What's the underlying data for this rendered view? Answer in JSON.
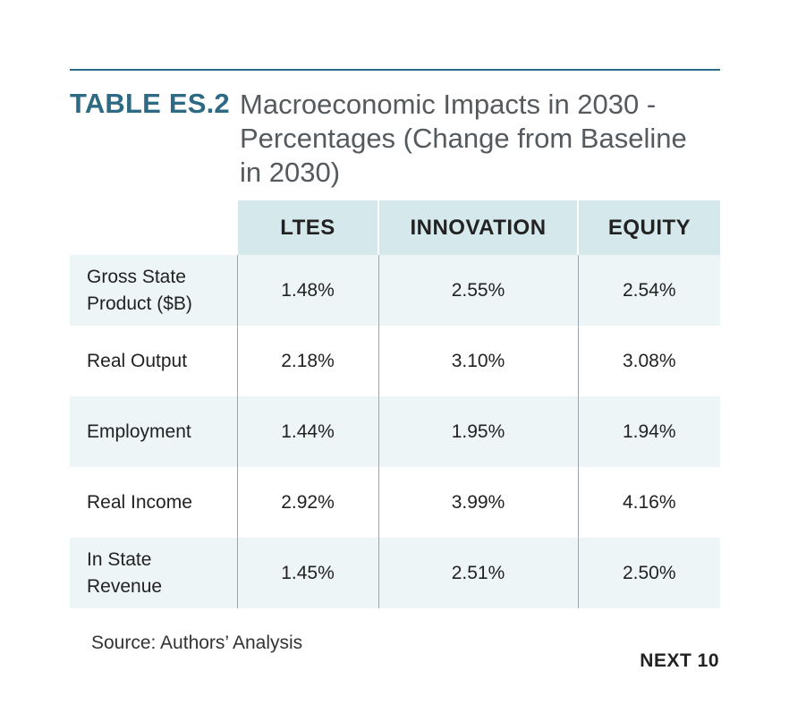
{
  "title": {
    "label": "TABLE ES.2",
    "text": "Macroeconomic Impacts in 2030 - Percentages (Change from Baseline in 2030)"
  },
  "table": {
    "headers": [
      "",
      "LTES",
      "INNOVATION",
      "EQUITY"
    ],
    "rows": [
      {
        "label": "Gross State Product ($B)",
        "values": [
          "1.48%",
          "2.55%",
          "2.54%"
        ]
      },
      {
        "label": "Real Output",
        "values": [
          "2.18%",
          "3.10%",
          "3.08%"
        ]
      },
      {
        "label": "Employment",
        "values": [
          "1.44%",
          "1.95%",
          "1.94%"
        ]
      },
      {
        "label": "Real Income",
        "values": [
          "2.92%",
          "3.99%",
          "4.16%"
        ]
      },
      {
        "label": "In State Revenue",
        "values": [
          "1.45%",
          "2.51%",
          "2.50%"
        ]
      }
    ]
  },
  "source": "Source: Authors’ Analysis",
  "brand": "NEXT 10",
  "colors": {
    "accent": "#2e6a83",
    "header_bg": "#d5e8ec",
    "row_shade": "#eef5f7"
  }
}
